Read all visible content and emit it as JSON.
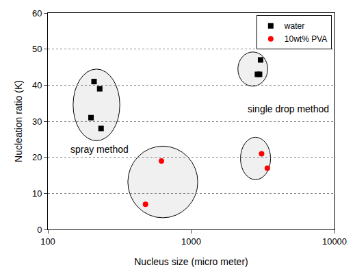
{
  "chart_data": {
    "type": "scatter",
    "x_label": "Nucleus size (micro meter)",
    "y_label": "Nucleation ratio (K)",
    "log": "x",
    "grid": true,
    "legend": "top-right",
    "annotations": [
      "spray method",
      "single drop method"
    ],
    "xlim": [
      100,
      10000
    ],
    "xticks": [
      100,
      1000,
      10000
    ],
    "ylim": [
      0,
      60
    ],
    "yticks": [
      0,
      10,
      20,
      30,
      40,
      50,
      60
    ],
    "series": [
      {
        "name": "water",
        "color": "#000000",
        "marker": "square",
        "x": [
          210,
          230,
          200,
          235,
          3050,
          2900,
          3000
        ],
        "values": [
          41,
          39,
          31,
          28,
          47,
          43,
          43
        ]
      },
      {
        "name": "10wt% PVA",
        "color": "#ff0000",
        "marker": "circle",
        "x": [
          480,
          620,
          3100,
          3400
        ],
        "values": [
          7,
          19,
          21,
          17
        ]
      }
    ]
  }
}
